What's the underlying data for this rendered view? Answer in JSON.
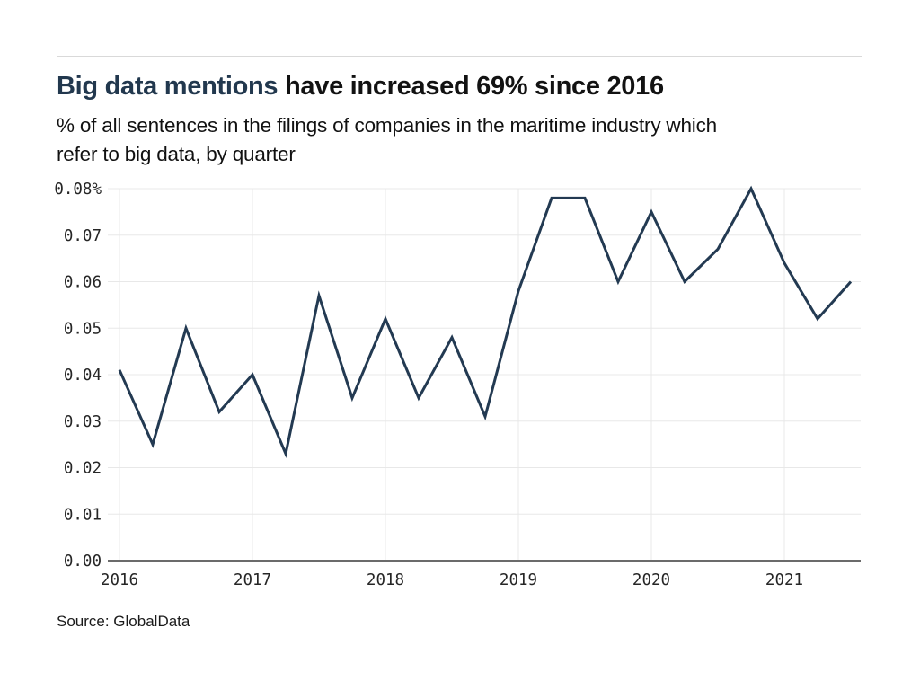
{
  "header": {
    "title_accent": "Big data mentions",
    "title_rest": " have increased 69% since 2016",
    "subtitle_line1": "% of all sentences in the filings of companies in the maritime industry which",
    "subtitle_line2": "refer to big data, by quarter"
  },
  "footer": {
    "source": "Source: GlobalData"
  },
  "colors": {
    "accent_navy": "#22384e",
    "line": "#233a52",
    "gridline": "#e8e8e8",
    "axis_line": "#6b6b6b",
    "tick_text": "#262626",
    "background": "#ffffff",
    "top_rule": "#d9d9d9"
  },
  "chart_data": {
    "type": "line",
    "title": "Big data mentions have increased 69% since 2016",
    "subtitle": "% of all sentences in the filings of companies in the maritime industry which refer to big data, by quarter",
    "x": [
      "2016 Q1",
      "2016 Q2",
      "2016 Q3",
      "2016 Q4",
      "2017 Q1",
      "2017 Q2",
      "2017 Q3",
      "2017 Q4",
      "2018 Q1",
      "2018 Q2",
      "2018 Q3",
      "2018 Q4",
      "2019 Q1",
      "2019 Q2",
      "2019 Q3",
      "2019 Q4",
      "2020 Q1",
      "2020 Q2",
      "2020 Q3",
      "2020 Q4",
      "2021 Q1",
      "2021 Q2",
      "2021 Q3"
    ],
    "values": [
      0.041,
      0.025,
      0.05,
      0.032,
      0.04,
      0.023,
      0.057,
      0.035,
      0.052,
      0.035,
      0.048,
      0.031,
      0.058,
      0.078,
      0.078,
      0.06,
      0.075,
      0.06,
      0.067,
      0.08,
      0.064,
      0.052,
      0.06
    ],
    "xlabel": "",
    "ylabel": "",
    "ylim": [
      0,
      0.08
    ],
    "grid": true,
    "legend": false,
    "y_ticks": [
      {
        "value": 0.0,
        "label": "0.00"
      },
      {
        "value": 0.01,
        "label": "0.01"
      },
      {
        "value": 0.02,
        "label": "0.02"
      },
      {
        "value": 0.03,
        "label": "0.03"
      },
      {
        "value": 0.04,
        "label": "0.04"
      },
      {
        "value": 0.05,
        "label": "0.05"
      },
      {
        "value": 0.06,
        "label": "0.06"
      },
      {
        "value": 0.07,
        "label": "0.07"
      },
      {
        "value": 0.08,
        "label": "0.08%"
      }
    ],
    "x_tick_labels": [
      "2016",
      "2017",
      "2018",
      "2019",
      "2020",
      "2021"
    ],
    "x_tick_positions": [
      0,
      4,
      8,
      12,
      16,
      20
    ]
  }
}
